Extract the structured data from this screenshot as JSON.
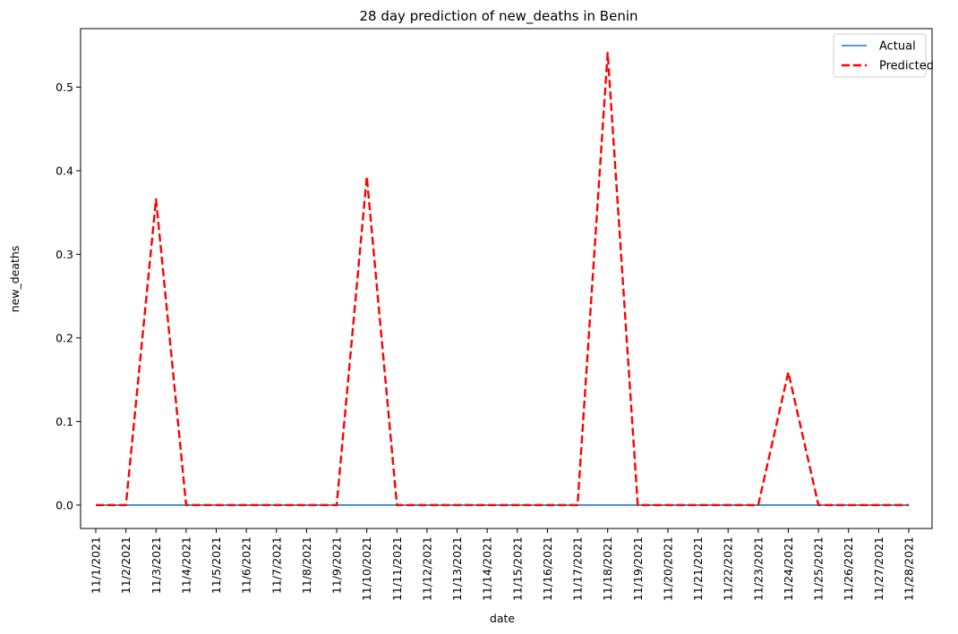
{
  "chart_data": {
    "type": "line",
    "title": "28 day prediction of new_deaths in Benin",
    "xlabel": "date",
    "ylabel": "new_deaths",
    "x": [
      "11/1/2021",
      "11/2/2021",
      "11/3/2021",
      "11/4/2021",
      "11/5/2021",
      "11/6/2021",
      "11/7/2021",
      "11/8/2021",
      "11/9/2021",
      "11/10/2021",
      "11/11/2021",
      "11/12/2021",
      "11/13/2021",
      "11/14/2021",
      "11/15/2021",
      "11/16/2021",
      "11/17/2021",
      "11/18/2021",
      "11/19/2021",
      "11/20/2021",
      "11/21/2021",
      "11/22/2021",
      "11/23/2021",
      "11/24/2021",
      "11/25/2021",
      "11/26/2021",
      "11/27/2021",
      "11/28/2021"
    ],
    "ylim": [
      -0.028,
      0.57
    ],
    "yticks": [
      "0.0",
      "0.1",
      "0.2",
      "0.3",
      "0.4",
      "0.5"
    ],
    "ytick_values": [
      0.0,
      0.1,
      0.2,
      0.3,
      0.4,
      0.5
    ],
    "grid": false,
    "legend_position": "upper right",
    "series": [
      {
        "name": "Actual",
        "color": "#1f77b4",
        "style": "solid",
        "values": [
          0,
          0,
          0,
          0,
          0,
          0,
          0,
          0,
          0,
          0,
          0,
          0,
          0,
          0,
          0,
          0,
          0,
          0,
          0,
          0,
          0,
          0,
          0,
          0,
          0,
          0,
          0,
          0
        ]
      },
      {
        "name": "Predicted",
        "color": "#ff0000",
        "style": "dashed",
        "values": [
          0,
          0,
          0.366,
          0,
          0,
          0,
          0,
          0,
          0,
          0.393,
          0,
          0,
          0,
          0,
          0,
          0,
          0,
          0.541,
          0,
          0,
          0,
          0,
          0,
          0.159,
          0,
          0,
          0,
          0
        ]
      }
    ]
  }
}
